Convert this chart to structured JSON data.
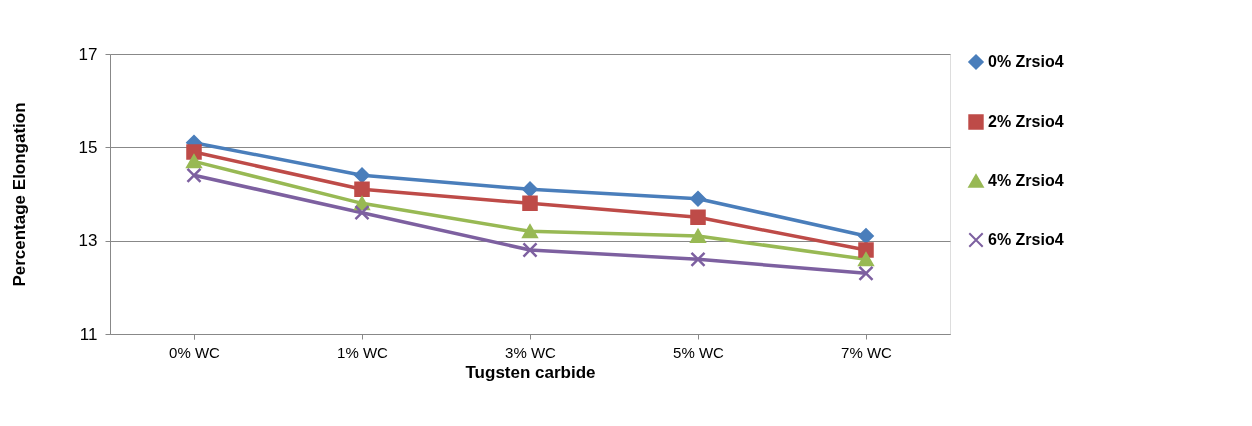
{
  "chart_data": {
    "type": "line",
    "xlabel": "Tugsten carbide",
    "ylabel": "Percentage    Elongation",
    "categories": [
      "0% WC",
      "1% WC",
      "3% WC",
      "5% WC",
      "7% WC"
    ],
    "series": [
      {
        "name": "0% Zrsio4",
        "color": "#4a7ebb",
        "marker": "diamond",
        "values": [
          15.1,
          14.4,
          14.1,
          13.9,
          13.1
        ]
      },
      {
        "name": "2% Zrsio4",
        "color": "#be4b48",
        "marker": "square",
        "values": [
          14.9,
          14.1,
          13.8,
          13.5,
          12.8
        ]
      },
      {
        "name": "4% Zrsio4",
        "color": "#98b954",
        "marker": "triangle",
        "values": [
          14.7,
          13.8,
          13.2,
          13.1,
          12.6
        ]
      },
      {
        "name": "6% Zrsio4",
        "color": "#7d60a0",
        "marker": "cross",
        "values": [
          14.4,
          13.6,
          12.8,
          12.6,
          12.3
        ]
      }
    ],
    "ylim": [
      11,
      17
    ],
    "yticks": [
      11,
      13,
      15,
      17
    ],
    "grid": "y",
    "legend": "right"
  }
}
